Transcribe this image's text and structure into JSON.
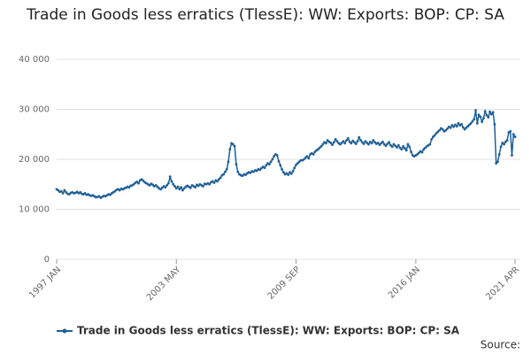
{
  "chart_data": {
    "type": "line",
    "title": "Trade in Goods less erratics (TlessE): WW: Exports: BOP: CP: SA",
    "source_label": "Source:",
    "categories": [
      "1997 JAN",
      null,
      null,
      null,
      null,
      null,
      null,
      null,
      null,
      null,
      null,
      null,
      null,
      null,
      null,
      null,
      null,
      null,
      null,
      null,
      null,
      null,
      null,
      null,
      null,
      null,
      null,
      null,
      null,
      null,
      null,
      null,
      null,
      null,
      null,
      null,
      null,
      null,
      null,
      null,
      null,
      null,
      null,
      null,
      null,
      null,
      null,
      null,
      null,
      null,
      null,
      null,
      null,
      null,
      null,
      null,
      null,
      null,
      null,
      null,
      null,
      null,
      null,
      null,
      null,
      null,
      null,
      null,
      null,
      null,
      null,
      null,
      null,
      null,
      null,
      null,
      "2003 MAY",
      null,
      null,
      null,
      null,
      null,
      null,
      null,
      null,
      null,
      null,
      null,
      null,
      null,
      null,
      null,
      null,
      null,
      null,
      null,
      null,
      null,
      null,
      null,
      null,
      null,
      null,
      null,
      null,
      null,
      null,
      null,
      null,
      null,
      null,
      null,
      null,
      null,
      null,
      null,
      null,
      null,
      null,
      null,
      null,
      null,
      null,
      null,
      null,
      null,
      null,
      null,
      null,
      null,
      null,
      null,
      null,
      null,
      null,
      null,
      null,
      null,
      null,
      null,
      null,
      null,
      null,
      null,
      null,
      null,
      null,
      null,
      null,
      null,
      null,
      null,
      "2009 SEP",
      null,
      null,
      null,
      null,
      null,
      null,
      null,
      null,
      null,
      null,
      null,
      null,
      null,
      null,
      null,
      null,
      null,
      null,
      null,
      null,
      null,
      null,
      null,
      null,
      null,
      null,
      null,
      null,
      null,
      null,
      null,
      null,
      null,
      null,
      null,
      null,
      null,
      null,
      null,
      null,
      null,
      null,
      null,
      null,
      null,
      null,
      null,
      null,
      null,
      null,
      null,
      null,
      null,
      null,
      null,
      null,
      null,
      null,
      null,
      null,
      null,
      null,
      null,
      null,
      null,
      null,
      null,
      null,
      null,
      null,
      null,
      null,
      null,
      null,
      null,
      "2016 JAN",
      null,
      null,
      null,
      null,
      null,
      null,
      null,
      null,
      null,
      null,
      null,
      null,
      null,
      null,
      null,
      null,
      null,
      null,
      null,
      null,
      null,
      null,
      null,
      null,
      null,
      null,
      null,
      null,
      null,
      null,
      null,
      null,
      null,
      null,
      null,
      null,
      null,
      null,
      null,
      null,
      null,
      null,
      null,
      null,
      null,
      null,
      null,
      null,
      null,
      null,
      null,
      null,
      null,
      null,
      null,
      null,
      null,
      null,
      null,
      null,
      null,
      null,
      "2021 APR"
    ],
    "series": [
      {
        "name": "Trade in Goods less erratics (TlessE): WW: Exports: BOP: CP: SA",
        "color": "#206095",
        "values": [
          14000,
          13800,
          13500,
          13600,
          13200,
          13800,
          13400,
          13100,
          13000,
          13300,
          13400,
          13200,
          13300,
          13500,
          13200,
          13400,
          13100,
          13000,
          13200,
          12900,
          13000,
          12800,
          12700,
          12800,
          12600,
          12400,
          12500,
          12600,
          12300,
          12500,
          12700,
          12600,
          12800,
          13000,
          12900,
          13200,
          13400,
          13600,
          13900,
          14000,
          13800,
          14100,
          14000,
          14200,
          14300,
          14500,
          14400,
          14700,
          14800,
          15000,
          15300,
          15500,
          15200,
          15800,
          16000,
          15700,
          15400,
          15200,
          15000,
          14800,
          15100,
          14900,
          14600,
          14800,
          14500,
          14200,
          14000,
          14300,
          14600,
          14400,
          14800,
          15200,
          16500,
          15600,
          15000,
          14600,
          14200,
          14500,
          14000,
          14400,
          13800,
          14200,
          14500,
          14700,
          14500,
          14300,
          14800,
          14600,
          14400,
          14900,
          14700,
          15000,
          14800,
          14600,
          15100,
          15000,
          15200,
          15000,
          15400,
          15600,
          15300,
          15800,
          15600,
          16000,
          16300,
          16800,
          17000,
          17500,
          18000,
          19500,
          22000,
          23200,
          23000,
          22600,
          19000,
          17500,
          17000,
          16800,
          16700,
          17000,
          16900,
          17200,
          17400,
          17300,
          17600,
          17500,
          17800,
          17700,
          18000,
          17900,
          18200,
          18500,
          18300,
          18800,
          19200,
          19000,
          19500,
          20000,
          20600,
          21000,
          20800,
          19600,
          18800,
          18000,
          17400,
          17000,
          17200,
          16900,
          17400,
          17100,
          17600,
          18300,
          18900,
          19200,
          19500,
          19800,
          19800,
          20000,
          20300,
          20600,
          20200,
          21000,
          21200,
          21000,
          21500,
          21800,
          22000,
          22300,
          22600,
          23000,
          23400,
          23200,
          23800,
          23500,
          23300,
          22900,
          23400,
          24000,
          23600,
          23200,
          23000,
          23300,
          23600,
          23200,
          23800,
          24200,
          23500,
          23200,
          23700,
          23400,
          23100,
          23600,
          24400,
          23800,
          23400,
          23100,
          23600,
          23300,
          23000,
          23500,
          23200,
          23800,
          23400,
          23100,
          23300,
          22900,
          23200,
          23500,
          23000,
          22700,
          23100,
          23400,
          22800,
          22500,
          23000,
          22700,
          22400,
          22800,
          22300,
          22000,
          22600,
          22200,
          21800,
          23000,
          22500,
          21500,
          20800,
          20600,
          20800,
          21000,
          21300,
          21600,
          21400,
          22000,
          22300,
          22600,
          22800,
          23000,
          24000,
          24500,
          24800,
          25200,
          25500,
          25800,
          26200,
          26000,
          25600,
          25800,
          26100,
          26500,
          26300,
          26800,
          26500,
          26900,
          26600,
          27200,
          26800,
          27000,
          26400,
          26000,
          26300,
          26600,
          26900,
          27200,
          27600,
          28000,
          29800,
          27200,
          28900,
          28500,
          27500,
          28200,
          29600,
          28800,
          28400,
          29500,
          29000,
          29400,
          27000,
          19200,
          19500,
          21000,
          22500,
          23300,
          23000,
          23500,
          23800,
          25400,
          25600,
          20800,
          25000,
          24500
        ]
      }
    ],
    "ylim": [
      0,
      40000
    ],
    "yticks": [
      0,
      {
        "value": 10000,
        "label": "10 000"
      },
      {
        "value": 20000,
        "label": "20 000"
      },
      {
        "value": 30000,
        "label": "30 000"
      },
      {
        "value": 40000,
        "label": "40 000"
      }
    ],
    "grid": true
  }
}
